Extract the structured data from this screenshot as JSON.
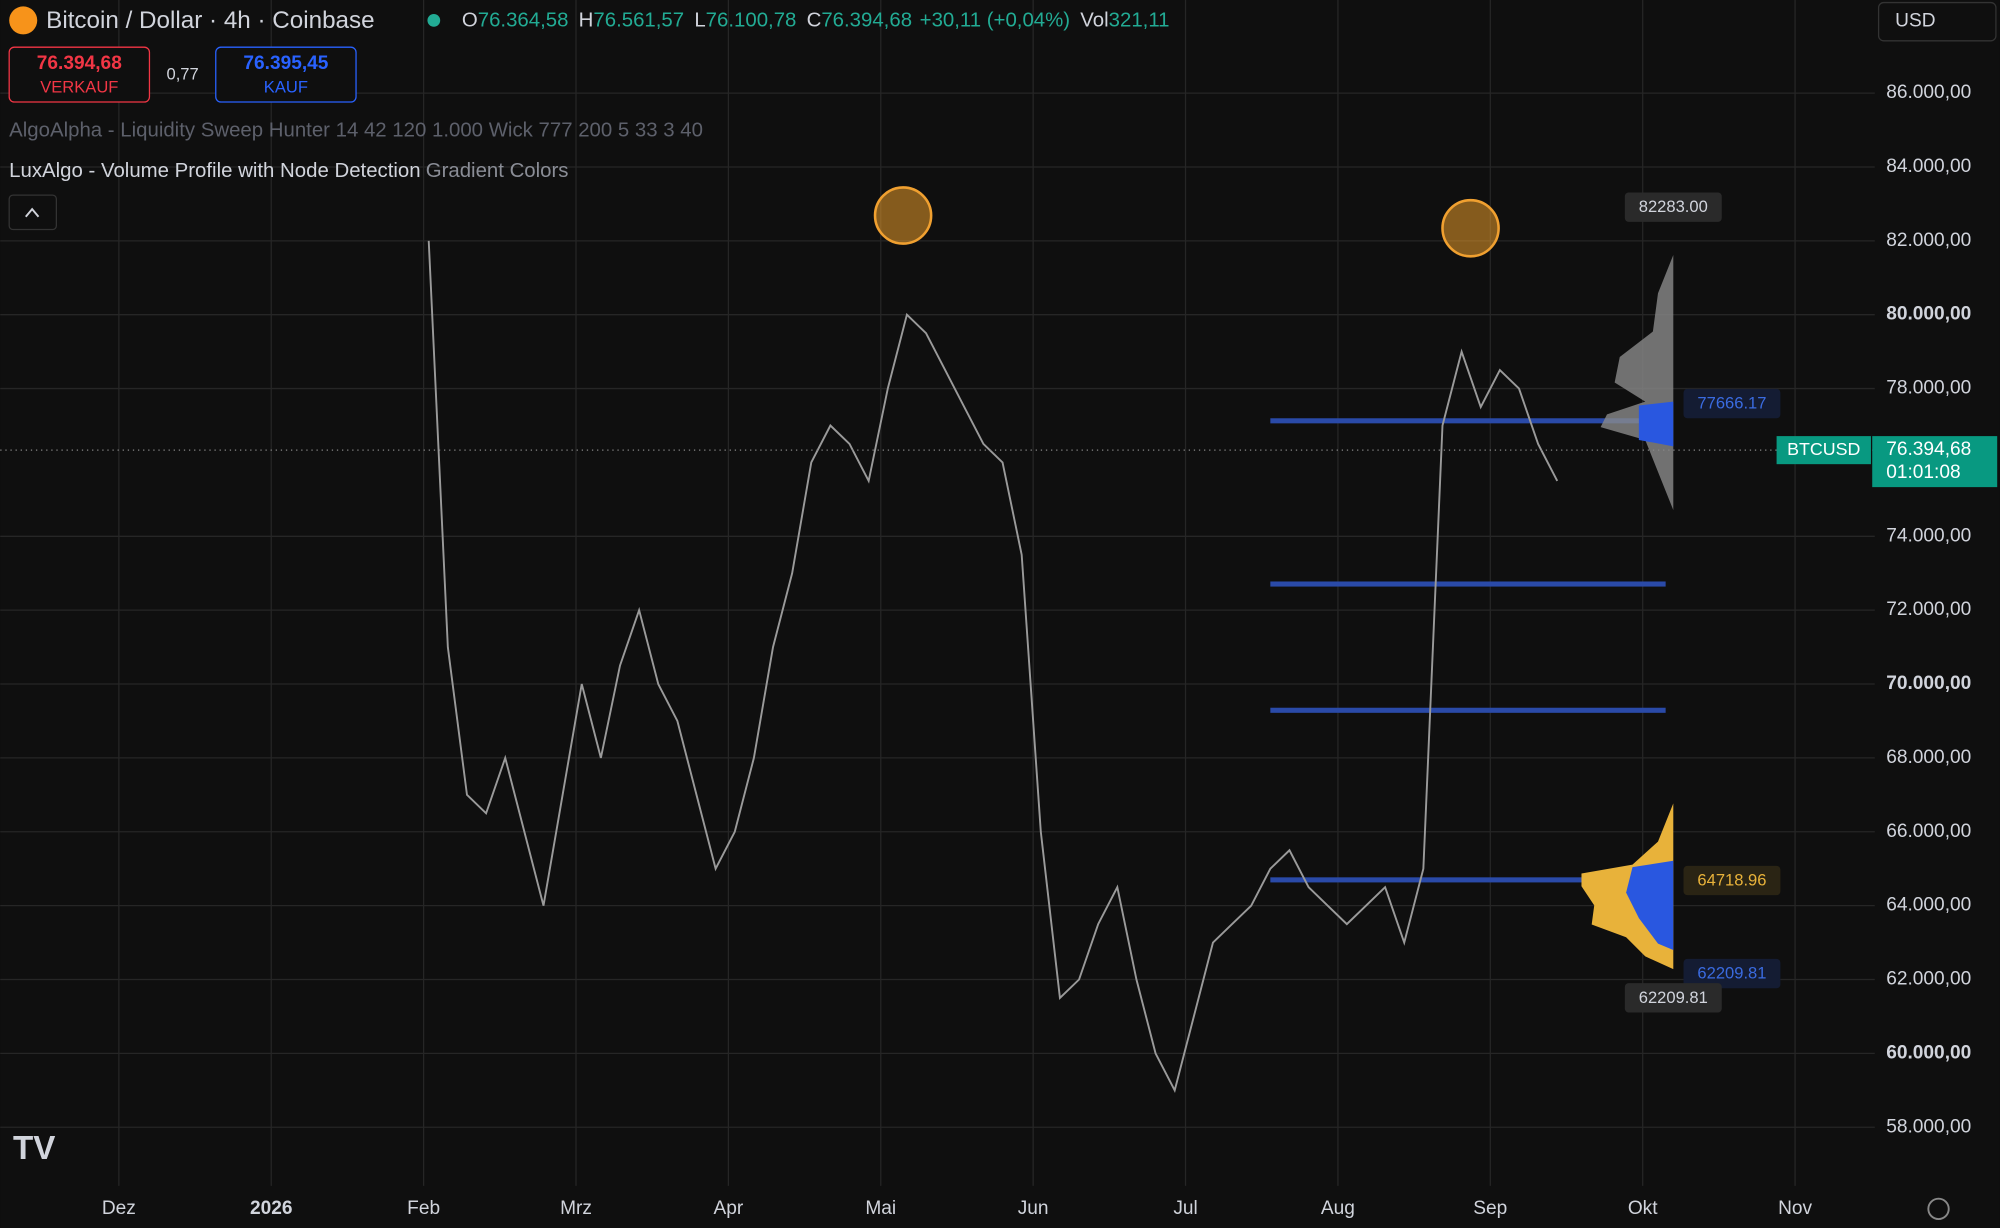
{
  "header": {
    "symbol": "Bitcoin / Dollar · 4h · Coinbase",
    "ohlc": [
      {
        "key": "O",
        "value": "76.364,58"
      },
      {
        "key": "H",
        "value": "76.561,57"
      },
      {
        "key": "L",
        "value": "76.100,78"
      },
      {
        "key": "C",
        "value": "76.394,68"
      }
    ],
    "change": "+30,11 (+0,04%)",
    "vol_key": "Vol",
    "vol": "321,11",
    "currency": "USD"
  },
  "trade": {
    "sell_price": "76.394,68",
    "sell_label": "VERKAUF",
    "spread": "0,77",
    "buy_price": "76.395,45",
    "buy_label": "KAUF"
  },
  "indicators": [
    {
      "name": "AlgoAlpha - Liquidity Sweep Hunter 14 42 120 1.000 Wick 777 200 5 33 3 40"
    },
    {
      "name": "LuxAlgo - Volume Profile with Node Detection",
      "setting": "Gradient Colors"
    }
  ],
  "price_axis": {
    "ylim": [
      57000,
      87000
    ],
    "yticks": [
      {
        "value": 86000,
        "label": "86.000,00"
      },
      {
        "value": 84000,
        "label": "84.000,00"
      },
      {
        "value": 82000,
        "label": "82.000,00"
      },
      {
        "value": 80000,
        "label": "80.000,00"
      },
      {
        "value": 78000,
        "label": "78.000,00"
      },
      {
        "value": 74000,
        "label": "74.000,00"
      },
      {
        "value": 72000,
        "label": "72.000,00"
      },
      {
        "value": 70000,
        "label": "70.000,00"
      },
      {
        "value": 68000,
        "label": "68.000,00"
      },
      {
        "value": 66000,
        "label": "66.000,00"
      },
      {
        "value": 64000,
        "label": "64.000,00"
      },
      {
        "value": 62000,
        "label": "62.000,00"
      },
      {
        "value": 60000,
        "label": "60.000,00"
      },
      {
        "value": 58000,
        "label": "58.000,00"
      }
    ]
  },
  "time_axis": {
    "labels": [
      "Dez",
      "2026",
      "Feb",
      "Mrz",
      "Apr",
      "Mai",
      "Jun",
      "Jul",
      "Aug",
      "Sep",
      "Okt",
      "Nov"
    ]
  },
  "last_price": {
    "symbol": "BTCUSD",
    "price": "76.394,68",
    "countdown": "01:01:08"
  },
  "profile_labels": {
    "high": "82283.00",
    "poc_upper": "77666.17",
    "poc": "64718.96",
    "low_right": "62209.81",
    "low": "62209.81"
  },
  "price_path": {
    "values": [
      82000,
      71000,
      67000,
      66500,
      68000,
      66000,
      64000,
      67000,
      70000,
      68000,
      70500,
      72000,
      70000,
      69000,
      67000,
      65000,
      66000,
      68000,
      71000,
      73000,
      76000,
      77000,
      76500,
      75500,
      78000,
      80000,
      79500,
      78500,
      77500,
      76500,
      76000,
      73500,
      66000,
      61500,
      62000,
      63500,
      64500,
      62000,
      60000,
      59000,
      61000,
      63000,
      63500,
      64000,
      65000,
      65500,
      64500,
      64000,
      63500,
      64000,
      64500,
      63000,
      65000,
      77000,
      79000,
      77500,
      78500,
      78000,
      76500,
      75500
    ]
  }
}
